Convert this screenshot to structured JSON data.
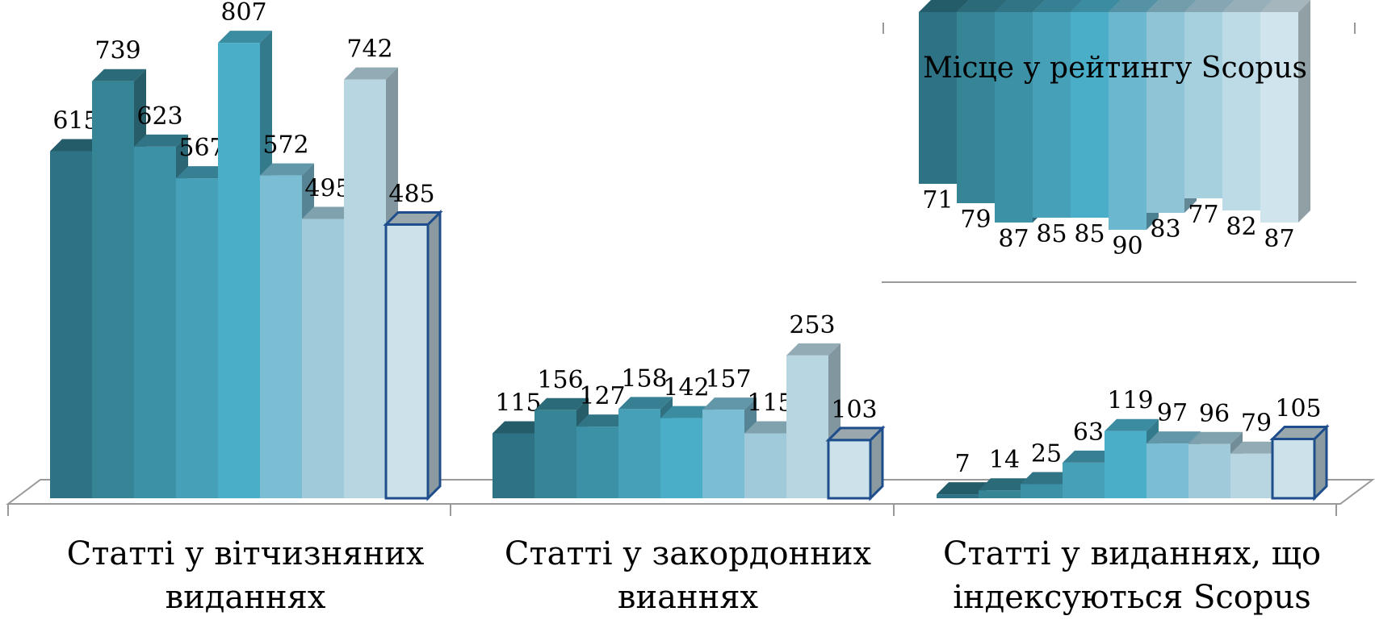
{
  "chart_data": [
    {
      "type": "bar3d",
      "categories": [
        "Статті у вітчизняних виданнях",
        "Статті у закордонних вианнях",
        "Статті у виданнях, що індексуються Scopus"
      ],
      "series": [
        {
          "color": "#2e7385",
          "values": [
            615,
            115,
            7
          ]
        },
        {
          "color": "#368596",
          "values": [
            739,
            156,
            14
          ]
        },
        {
          "color": "#3d91a6",
          "values": [
            623,
            127,
            25
          ]
        },
        {
          "color": "#45a0b8",
          "values": [
            567,
            158,
            63
          ]
        },
        {
          "color": "#4aaec9",
          "values": [
            807,
            142,
            119
          ]
        },
        {
          "color": "#7bbdd3",
          "values": [
            572,
            157,
            97
          ]
        },
        {
          "color": "#a0cad9",
          "values": [
            495,
            115,
            96
          ]
        },
        {
          "color": "#b8d6e1",
          "values": [
            742,
            253,
            79
          ]
        },
        {
          "color": "#cce1ea",
          "outline": "#1f4e8c",
          "values": [
            485,
            103,
            105
          ]
        }
      ]
    },
    {
      "type": "bar3d-hanging",
      "title": "Місце у рейтингу Scopus",
      "values": [
        71,
        79,
        87,
        85,
        85,
        90,
        83,
        77,
        82,
        87
      ],
      "colors": [
        "#2e7385",
        "#368596",
        "#3d91a6",
        "#45a0b8",
        "#4aaec9",
        "#6bb7cf",
        "#8fc4d6",
        "#a6d0de",
        "#bcdbe6",
        "#cfe4ec"
      ]
    }
  ]
}
